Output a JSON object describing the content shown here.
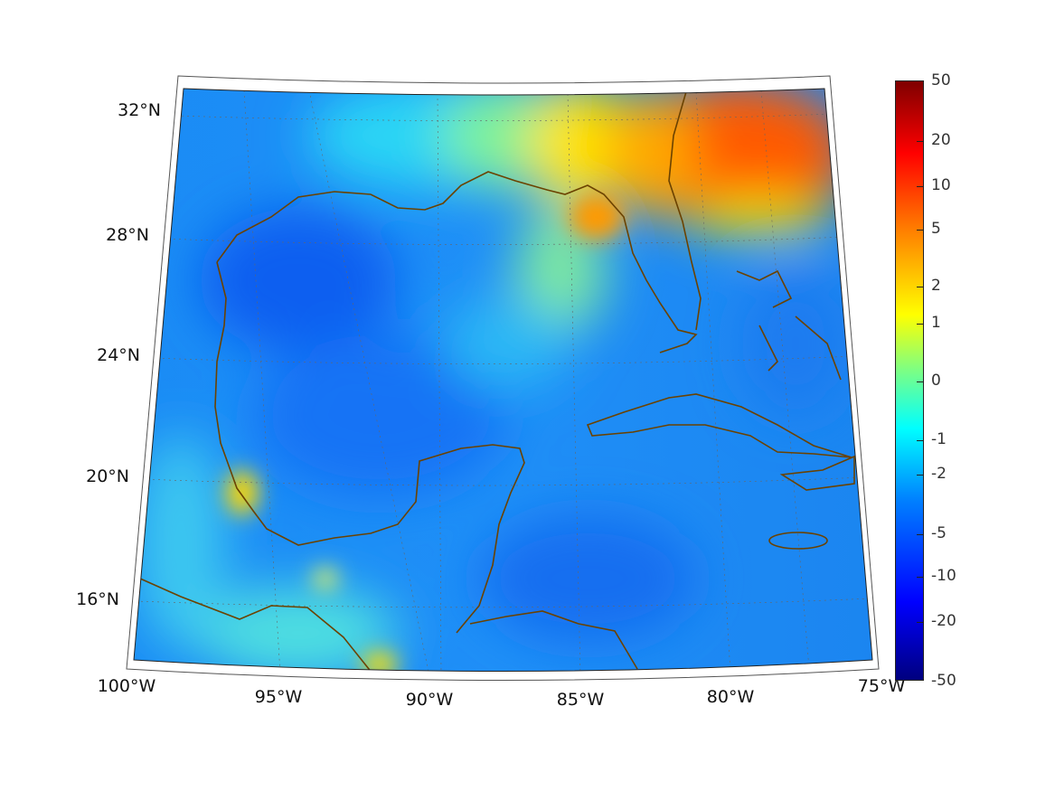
{
  "map": {
    "projection": "conic",
    "lat_labels": [
      "32°N",
      "28°N",
      "24°N",
      "20°N",
      "16°N"
    ],
    "lon_labels": [
      "100°W",
      "95°W",
      "90°W",
      "85°W",
      "80°W",
      "75°W"
    ],
    "coastline_color": "#6b4200"
  },
  "colorbar": {
    "tick_labels": [
      "50",
      "20",
      "10",
      "5",
      "2",
      "1",
      "0",
      "-1",
      "-2",
      "-5",
      "-10",
      "-20",
      "-50"
    ],
    "colormap": "jet"
  }
}
